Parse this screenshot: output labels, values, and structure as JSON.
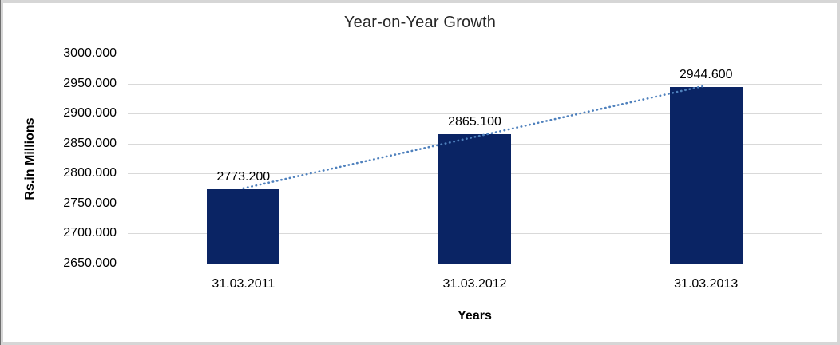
{
  "chart_data": {
    "type": "bar",
    "title": "Year-on-Year Growth",
    "categories": [
      "31.03.2011",
      "31.03.2012",
      "31.03.2013"
    ],
    "values": [
      2773.2,
      2865.1,
      2944.6
    ],
    "value_labels": [
      "2773.200",
      "2865.100",
      "2944.600"
    ],
    "xlabel": "Years",
    "ylabel": "Rs.in Millions",
    "ylim": [
      2650,
      3000
    ],
    "ytick_step": 50,
    "ytick_labels": [
      "3000.000",
      "2950.000",
      "2900.000",
      "2850.000",
      "2800.000",
      "2750.000",
      "2700.000",
      "2650.000"
    ],
    "grid": true,
    "legend": false,
    "trendline": {
      "type": "linear",
      "style": "dotted",
      "fitted_endpoint_values": [
        2775.3,
        2946.7
      ],
      "color": "#4F81BD"
    },
    "colors": {
      "bar": "#0A2464",
      "gridline": "#D9D9D9",
      "text": "#000000",
      "title_text": "#262626",
      "frame_border": "#D6D6D6",
      "left_edge": "#6E6E6E"
    }
  }
}
